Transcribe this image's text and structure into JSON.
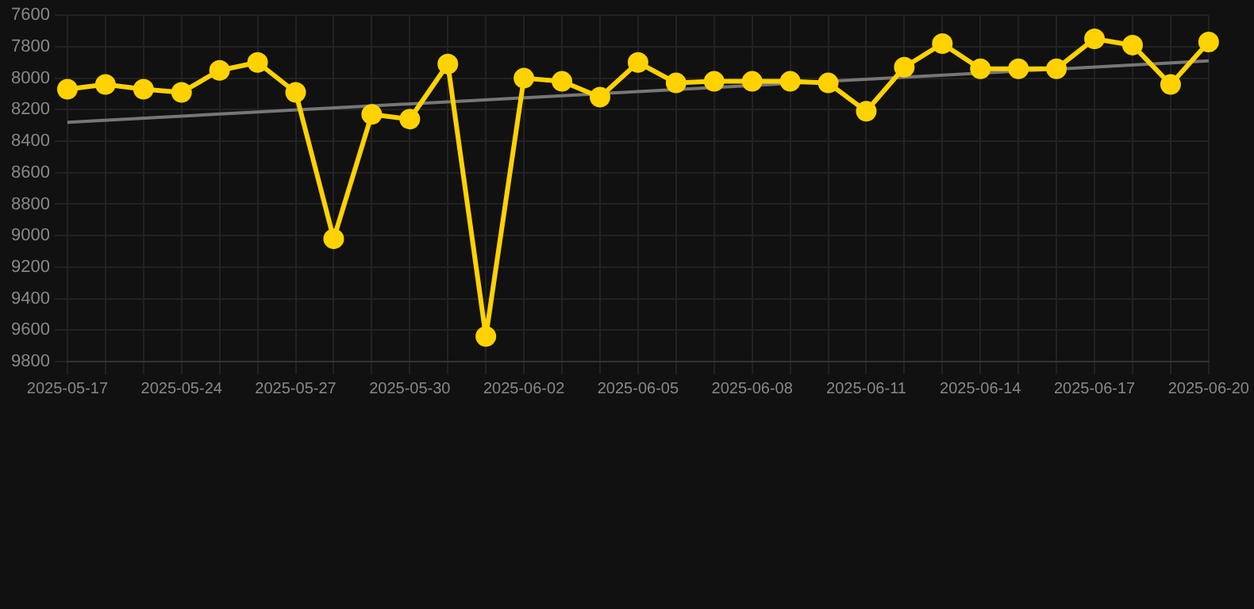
{
  "chart_data": {
    "type": "line",
    "categories": [
      "2025-05-17",
      null,
      null,
      "2025-05-24",
      null,
      null,
      "2025-05-27",
      null,
      null,
      "2025-05-30",
      null,
      null,
      "2025-06-02",
      null,
      null,
      "2025-06-05",
      null,
      null,
      "2025-06-08",
      null,
      null,
      "2025-06-11",
      null,
      null,
      "2025-06-14",
      null,
      null,
      "2025-06-17",
      null,
      null,
      "2025-06-20"
    ],
    "series": [
      {
        "color": "#ffd200",
        "marker": "circle",
        "values": [
          8070,
          8040,
          8070,
          8090,
          7950,
          7900,
          8090,
          9020,
          8230,
          8260,
          7910,
          9640,
          8000,
          8020,
          8120,
          7900,
          8030,
          8020,
          8020,
          8020,
          8030,
          8210,
          7930,
          7780,
          7940,
          7940,
          7940,
          7750,
          7790,
          8040,
          7770
        ]
      },
      {
        "type": "line",
        "color": "#777777",
        "marker": "none",
        "values": [
          8280,
          null,
          null,
          null,
          null,
          null,
          null,
          null,
          null,
          null,
          null,
          null,
          null,
          null,
          null,
          null,
          null,
          null,
          null,
          null,
          null,
          null,
          null,
          null,
          null,
          null,
          null,
          null,
          null,
          null,
          7890
        ]
      }
    ],
    "ylim": [
      9800,
      7600
    ],
    "yticks": [
      7600,
      7800,
      8000,
      8200,
      8400,
      8600,
      8800,
      9000,
      9200,
      9400,
      9600,
      9800
    ],
    "grid": true,
    "legend": false
  }
}
